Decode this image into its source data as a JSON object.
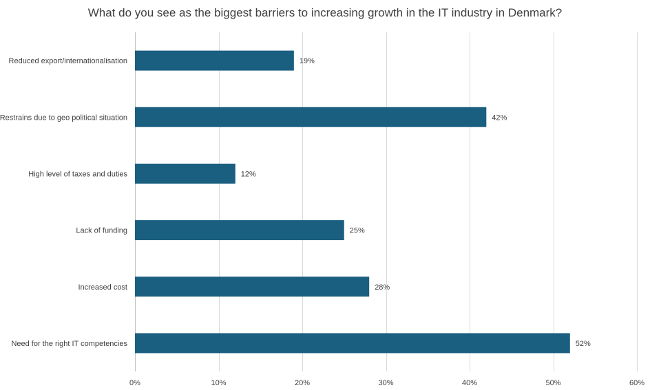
{
  "colors": {
    "bar": "#1a5e80",
    "grid": "#d9d9d9",
    "axis": "#bfbfbf"
  },
  "chart_data": {
    "type": "bar",
    "orientation": "horizontal",
    "title": "What do you see as the biggest barriers to increasing growth in the IT industry in Denmark?",
    "categories": [
      "Reduced export/internationalisation",
      "Restrains due to geo political situation",
      "High level of taxes and duties",
      "Lack of funding",
      "Increased cost",
      "Need for the right IT competencies"
    ],
    "values": [
      19,
      42,
      12,
      25,
      28,
      52
    ],
    "data_labels": [
      "19%",
      "42%",
      "12%",
      "25%",
      "28%",
      "52%"
    ],
    "xlim": [
      0,
      60
    ],
    "x_ticks": [
      0,
      10,
      20,
      30,
      40,
      50,
      60
    ],
    "x_tick_labels": [
      "0%",
      "10%",
      "20%",
      "30%",
      "40%",
      "50%",
      "60%"
    ],
    "xlabel": "",
    "ylabel": "",
    "grid": "vertical",
    "legend": "none"
  }
}
